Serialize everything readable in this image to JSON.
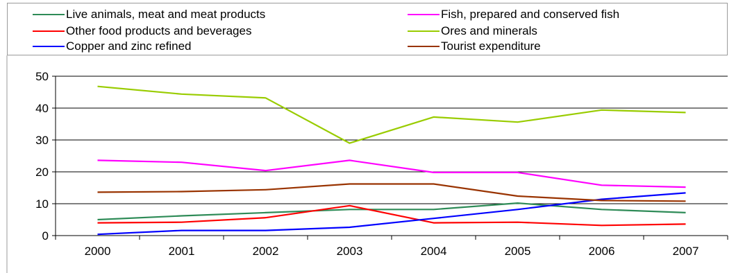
{
  "chart_data": {
    "type": "line",
    "title": "",
    "xlabel": "",
    "ylabel": "",
    "categories": [
      "2000",
      "2001",
      "2002",
      "2003",
      "2004",
      "2005",
      "2006",
      "2007"
    ],
    "ylim": [
      0,
      50
    ],
    "yticks": [
      0,
      10,
      20,
      30,
      40,
      50
    ],
    "grid": "horizontal",
    "legend_position": "top",
    "series": [
      {
        "name": "Live animals, meat and meat products",
        "color": "#2e8b57",
        "values": [
          5.0,
          6.2,
          7.2,
          8.2,
          8.2,
          10.2,
          8.2,
          7.2
        ]
      },
      {
        "name": "Fish, prepared and conserved fish",
        "color": "#ff00ff",
        "values": [
          23.6,
          23.0,
          20.4,
          23.6,
          19.8,
          19.8,
          15.8,
          15.2
        ]
      },
      {
        "name": "Other food products and beverages",
        "color": "#ff0000",
        "values": [
          4.0,
          4.2,
          5.6,
          9.4,
          4.0,
          4.2,
          3.2,
          3.6
        ]
      },
      {
        "name": "Ores and minerals",
        "color": "#99cc00",
        "values": [
          46.8,
          44.4,
          43.2,
          29.0,
          37.2,
          35.6,
          39.4,
          38.6
        ]
      },
      {
        "name": "Copper and zinc refined",
        "color": "#0000ff",
        "values": [
          0.4,
          1.6,
          1.6,
          2.6,
          5.4,
          8.2,
          11.4,
          13.4
        ]
      },
      {
        "name": "Tourist expenditure",
        "color": "#993300",
        "values": [
          13.6,
          13.8,
          14.4,
          16.2,
          16.2,
          12.4,
          11.0,
          10.8
        ]
      }
    ]
  }
}
